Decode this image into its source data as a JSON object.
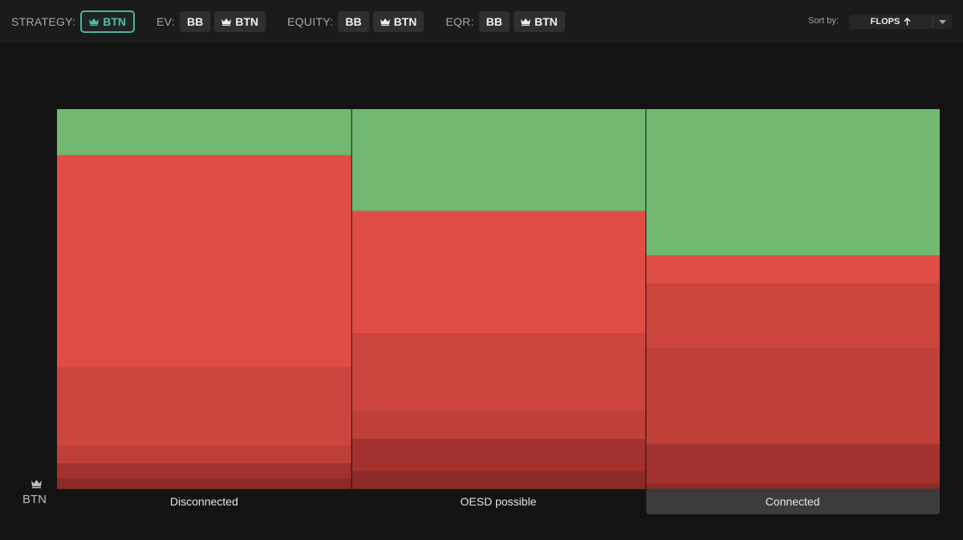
{
  "toolbar": {
    "strategy": {
      "label": "STRATEGY:",
      "buttons": [
        "BTN"
      ]
    },
    "ev": {
      "label": "EV:",
      "buttons": [
        "BB",
        "BTN"
      ]
    },
    "equity": {
      "label": "EQUITY:",
      "buttons": [
        "BB",
        "BTN"
      ]
    },
    "eqr": {
      "label": "EQR:",
      "buttons": [
        "BB",
        "BTN"
      ]
    },
    "sort_label": "Sort by:",
    "sort_value": "FLOPS",
    "sort_direction": "ascending"
  },
  "player_label": "BTN",
  "colors": {
    "accent": "#4fb3a0",
    "check": "#71b871"
  },
  "chart_data": {
    "type": "bar",
    "stacked": true,
    "normalized_percent": true,
    "categories": [
      "Disconnected",
      "OESD possible",
      "Connected"
    ],
    "selected_category": "Connected",
    "series": [
      {
        "color": "#71b871",
        "values": [
          12.1,
          26.8,
          38.5
        ]
      },
      {
        "color": "#e04d44",
        "values": [
          55.8,
          32.2,
          7.4
        ]
      },
      {
        "color": "#cc463f",
        "values": [
          20.7,
          20.5,
          16.9
        ]
      },
      {
        "color": "#bf3f39",
        "values": [
          4.7,
          7.4,
          25.4
        ]
      },
      {
        "color": "#a3322f",
        "values": [
          4.0,
          8.5,
          10.4
        ]
      },
      {
        "color": "#8c2a27",
        "values": [
          2.7,
          4.6,
          1.4
        ]
      }
    ]
  }
}
